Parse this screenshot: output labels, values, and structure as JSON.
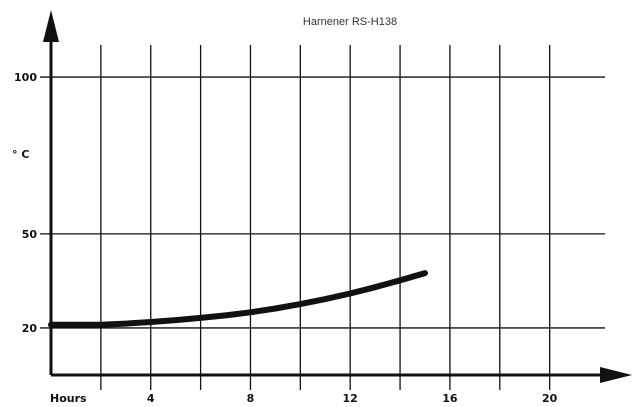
{
  "chart_data": {
    "type": "line",
    "title": "Harnener RS-H138",
    "xlabel": "Hours",
    "ylabel": "° C",
    "xlim": [
      0,
      22.5
    ],
    "ylim": [
      5,
      115
    ],
    "x_ticks": [
      4,
      8,
      12,
      16,
      20
    ],
    "x_tick_labels": [
      "4",
      "8",
      "12",
      "16",
      "20"
    ],
    "y_ticks": [
      20,
      50,
      100
    ],
    "y_tick_labels": [
      "20",
      "50",
      "100"
    ],
    "grid": true,
    "series": [
      {
        "x": [
          0,
          1,
          2,
          3,
          4,
          5,
          6,
          7,
          8,
          9,
          10,
          11,
          12,
          13,
          14,
          15
        ],
        "y": [
          21,
          21,
          21,
          21.4,
          21.9,
          22.5,
          23.2,
          24,
          25,
          26.2,
          27.6,
          29.2,
          31,
          33,
          35.2,
          37.5
        ]
      }
    ]
  }
}
